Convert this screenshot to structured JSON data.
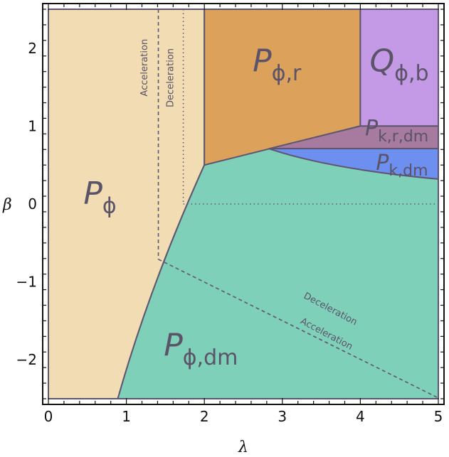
{
  "chart_data": {
    "type": "area",
    "title": "",
    "xlabel": "λ",
    "ylabel": "β",
    "xlim": [
      0,
      5
    ],
    "ylim": [
      -2.5,
      2.5
    ],
    "x_ticks": [
      "0",
      "1",
      "2",
      "3",
      "4",
      "5"
    ],
    "y_ticks": [
      "2",
      "1",
      "0",
      "−1",
      "−2"
    ],
    "grid": false,
    "regions": [
      {
        "id": "P_phi",
        "label_main": "P",
        "label_sub": "ϕ",
        "color": "#f2dcb3",
        "polygon": [
          [
            0,
            -2.5
          ],
          [
            0.89,
            -2.5
          ],
          [
            2,
            0.5
          ],
          [
            2,
            2.5
          ],
          [
            0,
            2.5
          ]
        ]
      },
      {
        "id": "P_phi_dm",
        "label_main": "P",
        "label_sub": "ϕ,dm",
        "color": "#7fd0b8",
        "polygon": [
          [
            0.89,
            -2.5
          ],
          [
            5,
            -2.5
          ],
          [
            5,
            0.32
          ],
          [
            2.83,
            0.71
          ],
          [
            2,
            0.5
          ]
        ]
      },
      {
        "id": "P_phi_r",
        "label_main": "P",
        "label_sub": "ϕ,r",
        "color": "#dca15a",
        "polygon": [
          [
            2,
            0.5
          ],
          [
            2,
            2.5
          ],
          [
            4,
            2.5
          ],
          [
            4,
            1.0
          ]
        ]
      },
      {
        "id": "Q_phi_b",
        "label_main": "Q",
        "label_sub": "ϕ,b",
        "color": "#c49ae6",
        "polygon": [
          [
            4,
            1.0
          ],
          [
            4,
            2.5
          ],
          [
            5,
            2.5
          ],
          [
            5,
            1.0
          ]
        ]
      },
      {
        "id": "P_k_r_dm",
        "label_main": "P",
        "label_sub": "k,r,dm",
        "color": "#a77a9f",
        "polygon": [
          [
            2.83,
            0.71
          ],
          [
            4,
            1.0
          ],
          [
            5,
            1.0
          ],
          [
            5,
            0.71
          ]
        ]
      },
      {
        "id": "P_k_dm",
        "label_main": "P",
        "label_sub": "k,dm",
        "color": "#6d8ff0",
        "polygon": [
          [
            2.83,
            0.71
          ],
          [
            5,
            0.71
          ],
          [
            5,
            0.32
          ]
        ]
      }
    ],
    "annotations": [
      {
        "text": "Acceleration",
        "x": 1.27,
        "y": 1.75,
        "rotation": -90
      },
      {
        "text": "Deceleration",
        "x": 1.6,
        "y": 1.62,
        "rotation": -90
      },
      {
        "text": "Deceleration",
        "x": 3.6,
        "y": -1.38,
        "rotation": 28
      },
      {
        "text": "Acceleration",
        "x": 3.55,
        "y": -1.7,
        "rotation": 28
      }
    ],
    "boundary_lines": [
      {
        "id": "accel-vertical",
        "style": "dashed",
        "points": [
          [
            1.41,
            2.5
          ],
          [
            1.41,
            -0.71
          ]
        ]
      },
      {
        "id": "decel-vertical",
        "style": "dotted",
        "points": [
          [
            1.73,
            2.5
          ],
          [
            1.73,
            0
          ]
        ]
      },
      {
        "id": "beta-zero",
        "style": "dotted",
        "points": [
          [
            1.73,
            0
          ],
          [
            5,
            0
          ]
        ]
      },
      {
        "id": "accel-diagonal",
        "style": "dashed",
        "points": [
          [
            1.41,
            -0.71
          ],
          [
            5,
            -2.49
          ]
        ]
      }
    ]
  }
}
